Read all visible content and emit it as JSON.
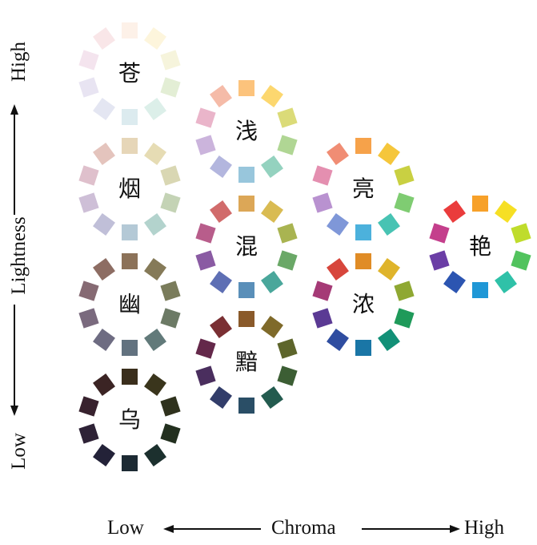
{
  "axes": {
    "x": {
      "label": "Chroma",
      "low": "Low",
      "high": "High"
    },
    "y": {
      "label": "Lightness",
      "low": "Low",
      "high": "High"
    }
  },
  "wheels": [
    {
      "id": "cang",
      "label": "苍",
      "chroma": 1,
      "lightness": 5,
      "colors": [
        "#fdf1e8",
        "#fdf5dc",
        "#f6f4dc",
        "#e3eed5",
        "#dcefe9",
        "#dcebef",
        "#e4e6f2",
        "#e8e4f2",
        "#f4e4ee",
        "#f9e6e8"
      ]
    },
    {
      "id": "yan_smoke",
      "label": "烟",
      "chroma": 1,
      "lightness": 4,
      "colors": [
        "#e6d6b8",
        "#e6dcb4",
        "#d9d7b3",
        "#c4d3b5",
        "#b3d3cd",
        "#b4c9d6",
        "#c0bfd8",
        "#cebfd7",
        "#dfc0cc",
        "#e4c4bd"
      ]
    },
    {
      "id": "you",
      "label": "幽",
      "chroma": 1,
      "lightness": 3,
      "colors": [
        "#8c7259",
        "#857a58",
        "#7a7c5b",
        "#6c7a65",
        "#627a7a",
        "#62727f",
        "#6e6c82",
        "#7a6a7e",
        "#866a73",
        "#8d6d63"
      ]
    },
    {
      "id": "wu",
      "label": "乌",
      "chroma": 1,
      "lightness": 2,
      "colors": [
        "#3a2e1c",
        "#3a351c",
        "#2f321d",
        "#23301f",
        "#1c302e",
        "#1c2a33",
        "#232238",
        "#2e2236",
        "#38222e",
        "#3b2424"
      ]
    },
    {
      "id": "qian",
      "label": "浅",
      "chroma": 2,
      "lightness": 4.5,
      "colors": [
        "#fcc37c",
        "#fcd76f",
        "#dbdb78",
        "#b0d694",
        "#94d2bf",
        "#98c6dc",
        "#b3b6de",
        "#cbb4dc",
        "#eab5ca",
        "#f5bba8"
      ]
    },
    {
      "id": "hun",
      "label": "混",
      "chroma": 2,
      "lightness": 3.5,
      "colors": [
        "#dca757",
        "#d9bb52",
        "#a9b451",
        "#6aa867",
        "#4aa79b",
        "#5a8fb9",
        "#5e6fb4",
        "#8a5ba3",
        "#b85d8b",
        "#d16b6b"
      ]
    },
    {
      "id": "an",
      "label": "黯",
      "chroma": 2,
      "lightness": 2.5,
      "colors": [
        "#8a5a2a",
        "#7f6a2a",
        "#5d652b",
        "#3c5e34",
        "#235b4f",
        "#2a4e66",
        "#323d6a",
        "#4a2e5e",
        "#64284a",
        "#7a2f33"
      ]
    },
    {
      "id": "liang",
      "label": "亮",
      "chroma": 3,
      "lightness": 4,
      "colors": [
        "#f6a24a",
        "#f5c63b",
        "#c9d042",
        "#7fcc72",
        "#48c3b3",
        "#4cb1dc",
        "#7f97d8",
        "#b992d0",
        "#e48fb0",
        "#f08d74"
      ]
    },
    {
      "id": "nong",
      "label": "浓",
      "chroma": 3,
      "lightness": 3,
      "colors": [
        "#e08c26",
        "#dfb42b",
        "#8fa832",
        "#1f9a5a",
        "#129077",
        "#1a76a6",
        "#2f4da0",
        "#5b3a94",
        "#a53a76",
        "#d7463c"
      ]
    },
    {
      "id": "yan_vivid",
      "label": "艳",
      "chroma": 4,
      "lightness": 3.5,
      "colors": [
        "#f7a12a",
        "#f6df24",
        "#bfdc2c",
        "#52c35e",
        "#2fc1a8",
        "#1f97d6",
        "#2c55b1",
        "#6b3ea6",
        "#c43f8c",
        "#ea3c3c"
      ]
    }
  ]
}
